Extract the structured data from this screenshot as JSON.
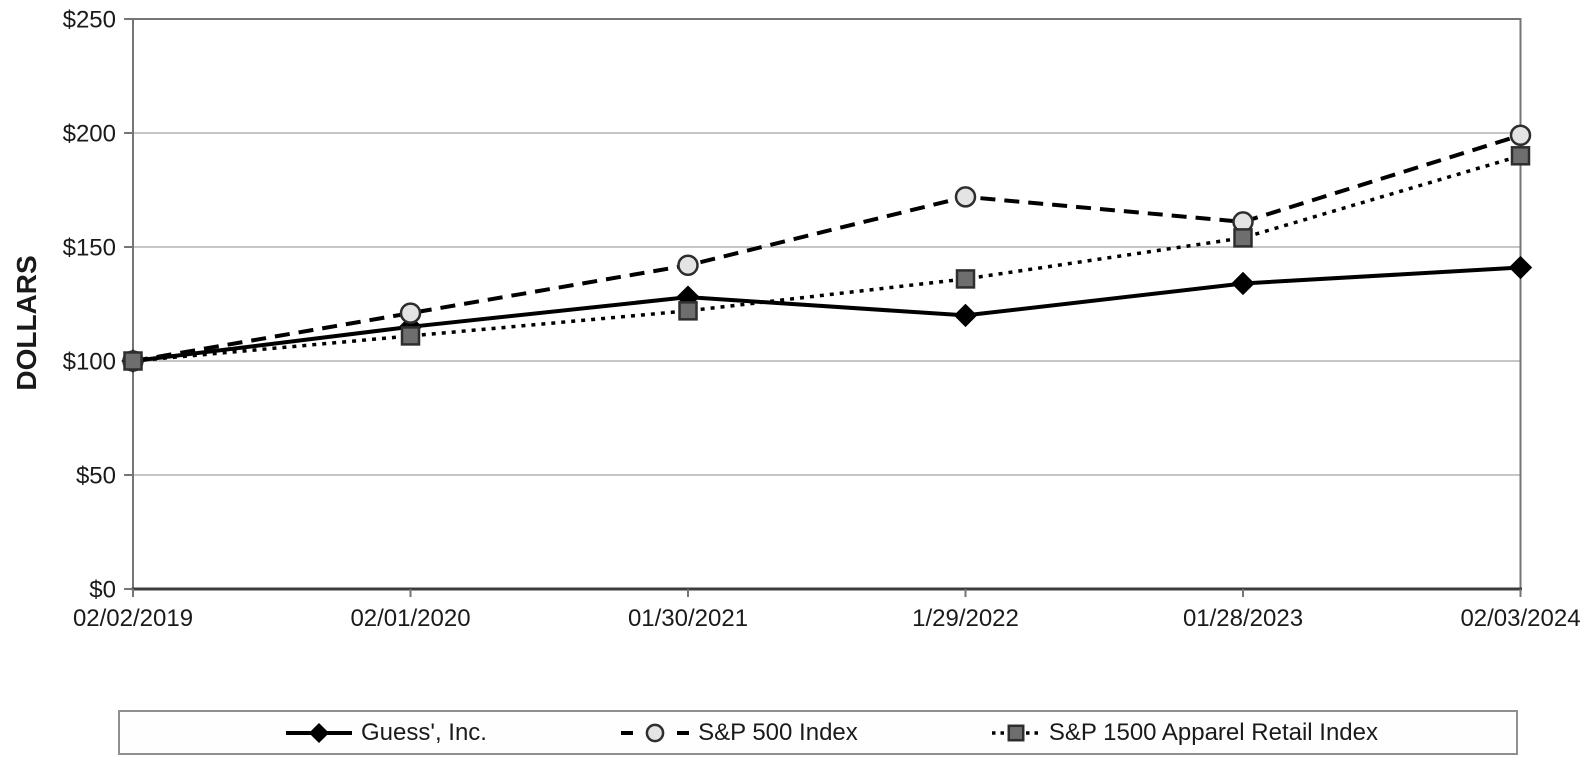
{
  "chart_data": {
    "type": "line",
    "title": "",
    "xlabel": "",
    "ylabel": "DOLLARS",
    "ylim": [
      0,
      250
    ],
    "grid": true,
    "legend_position": "bottom",
    "ytick_values": [
      0,
      50,
      100,
      150,
      200,
      250
    ],
    "ytick_labels": [
      "$0",
      "$50",
      "$100",
      "$150",
      "$200",
      "$250"
    ],
    "categories": [
      "02/02/2019",
      "02/01/2020",
      "01/30/2021",
      "1/29/2022",
      "01/28/2023",
      "02/03/2024"
    ],
    "series": [
      {
        "name": "Guess', Inc.",
        "values": [
          100,
          115,
          128,
          120,
          134,
          141
        ],
        "line_style": "solid",
        "marker": "diamond",
        "color": "#000000",
        "marker_fill": "#000000",
        "marker_stroke": "#000000"
      },
      {
        "name": "S&P 500 Index",
        "values": [
          100,
          121,
          142,
          172,
          161,
          199
        ],
        "line_style": "dashed",
        "marker": "circle",
        "color": "#000000",
        "marker_fill": "#e4e4e4",
        "marker_stroke": "#2e2e2e"
      },
      {
        "name": "S&P 1500 Apparel Retail Index",
        "values": [
          100,
          111,
          122,
          136,
          154,
          190
        ],
        "line_style": "dotted",
        "marker": "square",
        "color": "#000000",
        "marker_fill": "#6e6e6e",
        "marker_stroke": "#2e2e2e"
      }
    ],
    "colors": {
      "grid_line": "#b4b4b4",
      "plot_frame": "#757575",
      "axis_line": "#3c3c3c",
      "tick_text": "#1a1a1a"
    }
  }
}
